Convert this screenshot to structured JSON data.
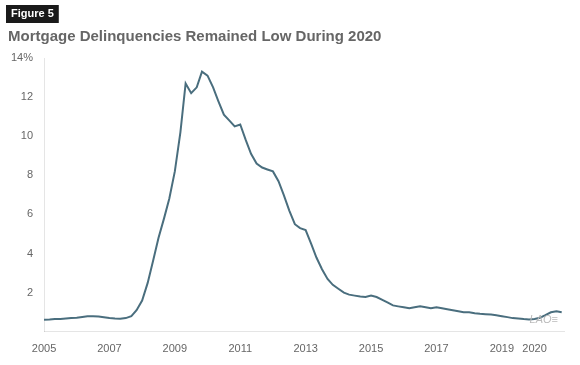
{
  "chart_data": {
    "type": "line",
    "title": "Mortgage Delinquencies Remained Low During 2020",
    "annotations": [
      "Figure 5",
      "LAO≡"
    ],
    "color": "#4a6e7e",
    "grid": false,
    "xlim": [
      2005,
      2020.9
    ],
    "xticks": [
      2005,
      2007,
      2009,
      2011,
      2013,
      2015,
      2017,
      2019,
      2020
    ],
    "ylim": [
      0,
      14
    ],
    "yticks": [
      {
        "value": 0,
        "label": ""
      },
      2,
      4,
      6,
      8,
      10,
      12,
      {
        "value": 14,
        "label": "14%"
      }
    ],
    "x": [
      2005.0,
      2005.17,
      2005.33,
      2005.5,
      2005.67,
      2005.83,
      2006.0,
      2006.17,
      2006.33,
      2006.5,
      2006.67,
      2006.83,
      2007.0,
      2007.17,
      2007.33,
      2007.5,
      2007.67,
      2007.83,
      2008.0,
      2008.17,
      2008.33,
      2008.5,
      2008.67,
      2008.83,
      2009.0,
      2009.17,
      2009.33,
      2009.5,
      2009.67,
      2009.83,
      2010.0,
      2010.17,
      2010.33,
      2010.5,
      2010.67,
      2010.83,
      2011.0,
      2011.17,
      2011.33,
      2011.5,
      2011.67,
      2011.83,
      2012.0,
      2012.17,
      2012.33,
      2012.5,
      2012.67,
      2012.83,
      2013.0,
      2013.17,
      2013.33,
      2013.5,
      2013.67,
      2013.83,
      2014.0,
      2014.17,
      2014.33,
      2014.5,
      2014.67,
      2014.83,
      2015.0,
      2015.17,
      2015.33,
      2015.5,
      2015.67,
      2015.83,
      2016.0,
      2016.17,
      2016.33,
      2016.5,
      2016.67,
      2016.83,
      2017.0,
      2017.17,
      2017.33,
      2017.5,
      2017.67,
      2017.83,
      2018.0,
      2018.17,
      2018.33,
      2018.5,
      2018.67,
      2018.83,
      2019.0,
      2019.17,
      2019.33,
      2019.5,
      2019.67,
      2019.83,
      2020.0,
      2020.17,
      2020.33,
      2020.5,
      2020.67,
      2020.83
    ],
    "values": [
      0.62,
      0.63,
      0.65,
      0.66,
      0.68,
      0.7,
      0.72,
      0.76,
      0.79,
      0.8,
      0.78,
      0.74,
      0.7,
      0.68,
      0.67,
      0.7,
      0.8,
      1.1,
      1.6,
      2.5,
      3.6,
      4.8,
      5.8,
      6.8,
      8.2,
      10.2,
      12.7,
      12.2,
      12.5,
      13.3,
      13.1,
      12.5,
      11.8,
      11.1,
      10.8,
      10.5,
      10.6,
      9.8,
      9.1,
      8.6,
      8.4,
      8.3,
      8.2,
      7.7,
      7.0,
      6.2,
      5.5,
      5.3,
      5.2,
      4.5,
      3.8,
      3.2,
      2.7,
      2.4,
      2.2,
      2.0,
      1.9,
      1.85,
      1.8,
      1.78,
      1.85,
      1.78,
      1.65,
      1.5,
      1.35,
      1.3,
      1.25,
      1.2,
      1.25,
      1.3,
      1.25,
      1.2,
      1.25,
      1.2,
      1.15,
      1.1,
      1.05,
      1.0,
      1.0,
      0.95,
      0.92,
      0.9,
      0.88,
      0.85,
      0.8,
      0.75,
      0.7,
      0.68,
      0.65,
      0.63,
      0.65,
      0.72,
      0.85,
      1.0,
      1.05,
      1.0
    ]
  }
}
